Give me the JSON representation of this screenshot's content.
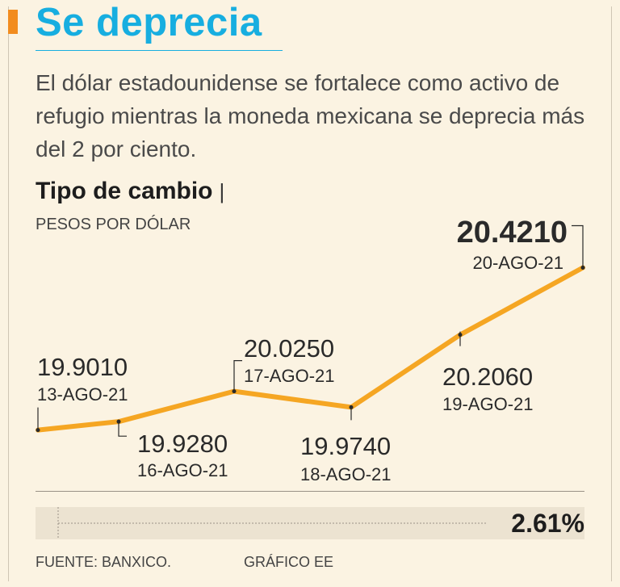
{
  "header": {
    "title": "Se deprecia",
    "subtitle": "El dólar estadounidense se fortalece como activo de refugio mientras la moneda mexicana se deprecia más del 2 por ciento."
  },
  "chart_data": {
    "type": "line",
    "title": "Tipo de cambio",
    "ylabel": "PESOS POR DÓLAR",
    "x": [
      "13-AGO-21",
      "16-AGO-21",
      "17-AGO-21",
      "18-AGO-21",
      "19-AGO-21",
      "20-AGO-21"
    ],
    "values": [
      19.901,
      19.928,
      20.025,
      19.974,
      20.206,
      20.421
    ],
    "value_labels": [
      "19.9010",
      "19.9280",
      "20.0250",
      "19.9740",
      "20.2060",
      "20.4210"
    ],
    "line_color": "#f5a623",
    "grid": false
  },
  "summary": {
    "change_pct_label": "2.61%",
    "change_pct": 2.61
  },
  "footer": {
    "source": "FUENTE: BANXICO.",
    "credit": "GRÁFICO EE"
  },
  "colors": {
    "accent": "#f28c1e",
    "title": "#17aee0",
    "line": "#f5a623"
  }
}
